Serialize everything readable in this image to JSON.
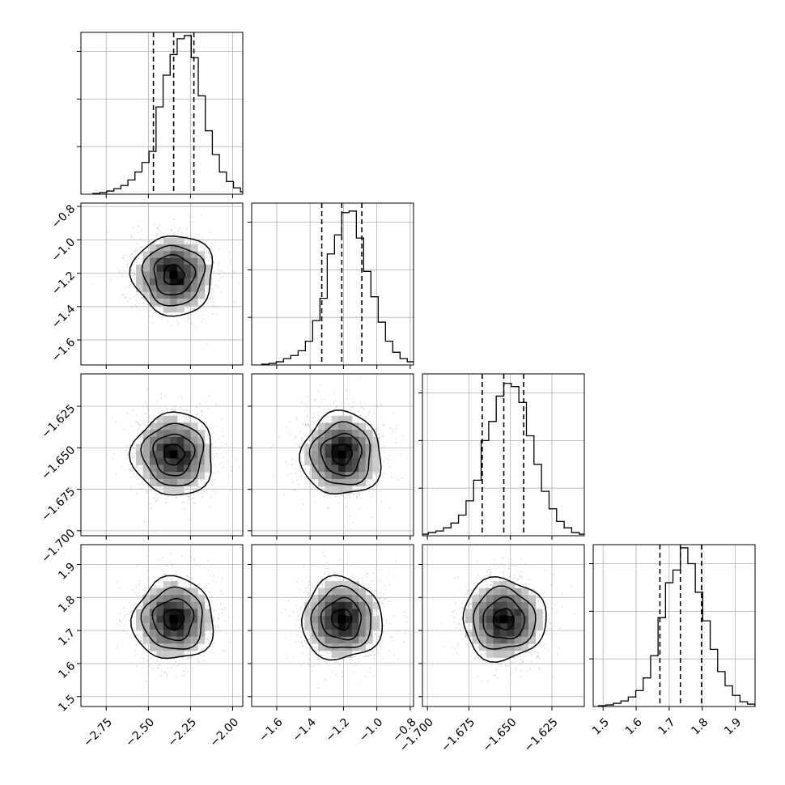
{
  "chart_data": {
    "type": "corner",
    "n_params": 4,
    "params": [
      {
        "name": "",
        "range": [
          -2.9,
          -1.94
        ],
        "ticks": [
          -2.75,
          -2.5,
          -2.25,
          -2.0
        ],
        "tick_labels": [
          "−2.75",
          "−2.50",
          "−2.25",
          "−2.00"
        ],
        "quantiles": [
          -2.47,
          -2.35,
          -2.23
        ],
        "median": -2.35,
        "sigma": 0.12,
        "hist_ticks": [
          0.3,
          0.6,
          0.9
        ],
        "hist_max": 1.02,
        "hist_counts": [
          0.005,
          0.01,
          0.02,
          0.035,
          0.055,
          0.09,
          0.14,
          0.2,
          0.27,
          0.55,
          0.75,
          0.88,
          0.98,
          1.0,
          0.86,
          0.62,
          0.4,
          0.25,
          0.14,
          0.08,
          0.04,
          0.015,
          0.005
        ]
      },
      {
        "name": "",
        "range": [
          -1.75,
          -0.78
        ],
        "ticks": [
          -1.6,
          -1.4,
          -1.2,
          -1.0,
          -0.8
        ],
        "tick_labels": [
          "−1.6",
          "−1.4",
          "−1.2",
          "−1.0",
          "−0.8"
        ],
        "quantiles": [
          -1.33,
          -1.21,
          -1.09
        ],
        "median": -1.21,
        "sigma": 0.12,
        "hist_ticks": [
          0.3,
          0.6,
          0.9
        ],
        "hist_max": 1.02,
        "hist_counts": [
          0.005,
          0.01,
          0.02,
          0.04,
          0.06,
          0.09,
          0.15,
          0.28,
          0.42,
          0.7,
          0.82,
          0.96,
          0.97,
          0.8,
          0.59,
          0.43,
          0.27,
          0.15,
          0.08,
          0.04,
          0.02,
          0.01
        ]
      },
      {
        "name": "",
        "range": [
          -1.703,
          -1.6055
        ],
        "ticks": [
          -1.7,
          -1.675,
          -1.65,
          -1.625
        ],
        "tick_labels": [
          "−1.700",
          "−1.675",
          "−1.650",
          "−1.625"
        ],
        "quantiles": [
          -1.667,
          -1.654,
          -1.642
        ],
        "median": -1.654,
        "sigma": 0.0125,
        "hist_ticks": [
          0.3,
          0.6,
          0.9
        ],
        "hist_max": 1.02,
        "hist_counts": [
          0.01,
          0.02,
          0.03,
          0.05,
          0.08,
          0.13,
          0.22,
          0.35,
          0.6,
          0.72,
          0.88,
          0.96,
          0.94,
          0.84,
          0.63,
          0.45,
          0.28,
          0.17,
          0.09,
          0.05,
          0.02,
          0.01
        ]
      },
      {
        "name": "",
        "range": [
          1.47,
          1.96
        ],
        "ticks": [
          1.5,
          1.6,
          1.7,
          1.8,
          1.9
        ],
        "tick_labels": [
          "1.5",
          "1.6",
          "1.7",
          "1.8",
          "1.9"
        ],
        "quantiles": [
          1.672,
          1.734,
          1.798
        ],
        "median": 1.734,
        "sigma": 0.062,
        "hist_ticks": [
          0.3,
          0.6,
          0.9
        ],
        "hist_max": 1.02,
        "hist_counts": [
          0.005,
          0.01,
          0.02,
          0.035,
          0.06,
          0.1,
          0.18,
          0.32,
          0.56,
          0.78,
          0.86,
          1.0,
          0.9,
          0.72,
          0.54,
          0.36,
          0.22,
          0.13,
          0.07,
          0.03,
          0.015,
          0.005
        ]
      }
    ],
    "contour_levels_sigma": [
      0.5,
      1.0,
      1.5,
      2.0
    ],
    "grid": true,
    "title": "",
    "colors": {
      "line": "#000000",
      "scatter": "#9e9e9e",
      "grid": "#b0b0b0"
    }
  }
}
